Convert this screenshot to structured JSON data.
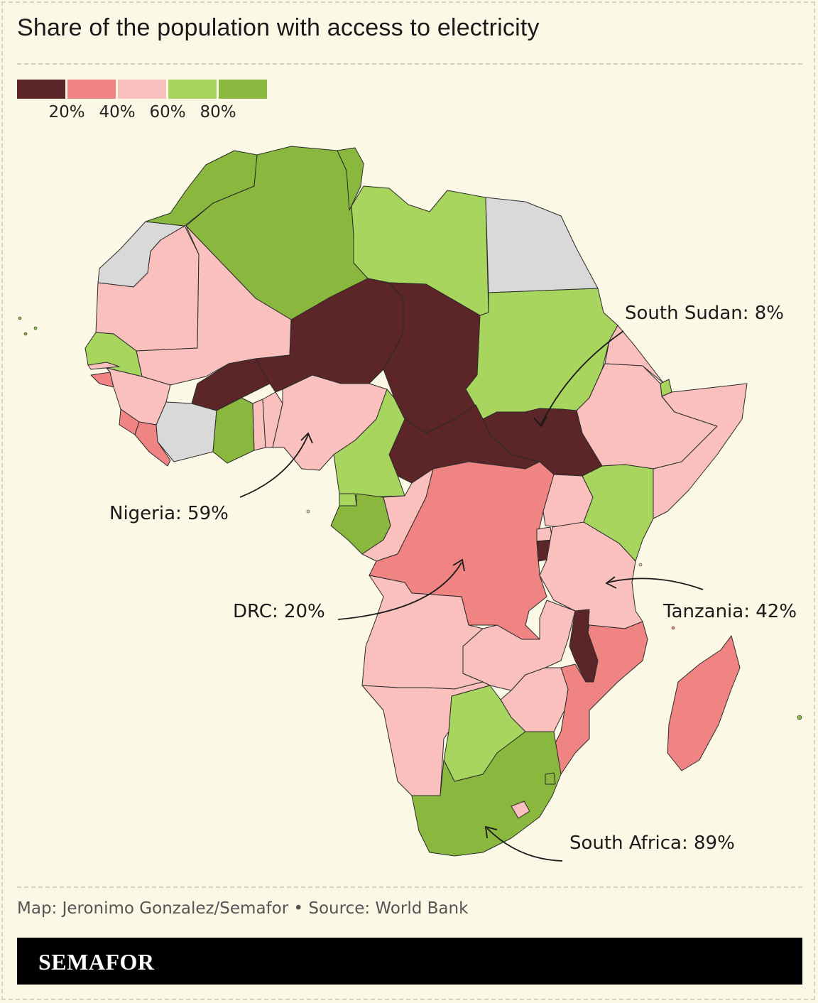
{
  "title": "Share of the population with access to electricity",
  "colors": {
    "background": "#fbf8e6",
    "bin_0_20": "#5c2629",
    "bin_20_40": "#f08483",
    "bin_40_60": "#f9c0bd",
    "bin_60_80": "#a7d55e",
    "bin_80_100": "#8ab83e",
    "no_data": "#d9d9d9"
  },
  "legend": {
    "ticks": [
      "20%",
      "40%",
      "60%",
      "80%"
    ]
  },
  "callouts": {
    "south_sudan": "South Sudan: 8%",
    "nigeria": "Nigeria: 59%",
    "drc": "DRC: 20%",
    "tanzania": "Tanzania: 42%",
    "south_africa": "South Africa: 89%"
  },
  "credit": "Map: Jeronimo Gonzalez/Semafor • Source: World Bank",
  "brand": "SEMAFOR"
}
